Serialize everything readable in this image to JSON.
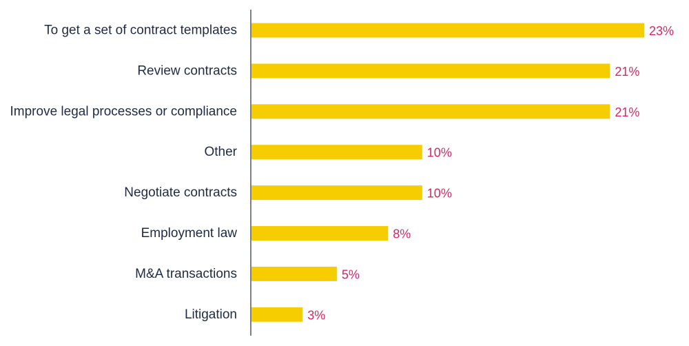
{
  "colors": {
    "bar": "#f5cd00",
    "value_label": "#e0245e",
    "category_label": "#1f2a44",
    "axis": "#1f2a44"
  },
  "chart_data": {
    "type": "bar",
    "orientation": "horizontal",
    "categories": [
      "To get a set of contract templates",
      "Review contracts",
      "Improve legal processes or compliance",
      "Other",
      "Negotiate contracts",
      "Employment law",
      "M&A transactions",
      "Litigation"
    ],
    "values": [
      23,
      21,
      21,
      10,
      10,
      8,
      5,
      3
    ],
    "value_labels": [
      "23%",
      "21%",
      "21%",
      "10%",
      "10%",
      "8%",
      "5%",
      "3%"
    ],
    "unit": "%",
    "xlim": [
      0,
      23
    ],
    "grid": false,
    "legend": "none"
  }
}
